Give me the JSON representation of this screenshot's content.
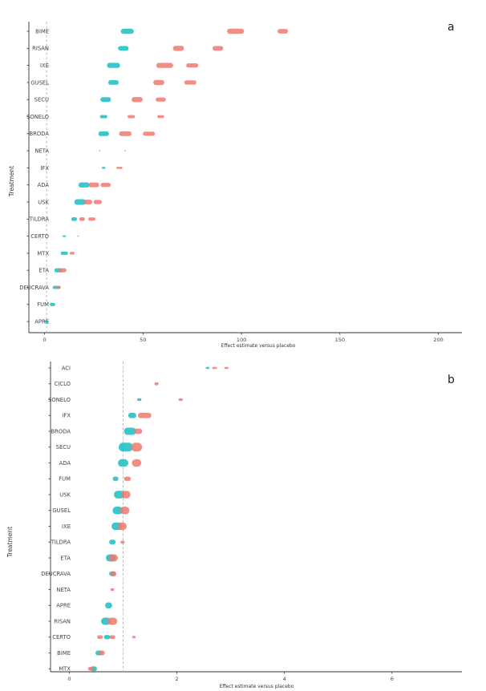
{
  "colors": {
    "teal": "#19bdc2",
    "salmon": "#ef7a6f",
    "axis": "#333333",
    "refline": "#b5b5b5"
  },
  "chart_data": [
    {
      "panel": "a",
      "type": "scatter",
      "ylabel": "Treatment",
      "xlabel": "Effect estimate versus placebo",
      "xlim": [
        -8,
        212
      ],
      "xticks": [
        0,
        50,
        100,
        150,
        200
      ],
      "reference_x": 1,
      "categories": [
        "BIME",
        "RISAN",
        "IXE",
        "GUSEL",
        "SECU",
        "SONELO",
        "BRODA",
        "NETA",
        "IFX",
        "ADA",
        "USK",
        "TILDRA",
        "CERTO",
        "MTX",
        "ETA",
        "DEUCRAVA",
        "FUM",
        "APRE"
      ],
      "series": [
        {
          "color": "teal",
          "points": [
            {
              "c": "BIME",
              "x": 42,
              "w": 4,
              "s": 1.1
            },
            {
              "c": "RISAN",
              "x": 40,
              "w": 3,
              "s": 1.0
            },
            {
              "c": "IXE",
              "x": 35,
              "w": 4,
              "s": 1.1
            },
            {
              "c": "GUSEL",
              "x": 35,
              "w": 3,
              "s": 1.0
            },
            {
              "c": "SECU",
              "x": 31,
              "w": 3,
              "s": 1.0
            },
            {
              "c": "SONELO",
              "x": 30,
              "w": 2,
              "s": 0.7
            },
            {
              "c": "BRODA",
              "x": 30,
              "w": 3,
              "s": 1.0
            },
            {
              "c": "NETA",
              "x": 28,
              "w": 0,
              "s": 0.25
            },
            {
              "c": "IFX",
              "x": 30,
              "w": 1,
              "s": 0.4
            },
            {
              "c": "ADA",
              "x": 20,
              "w": 3,
              "s": 1.1
            },
            {
              "c": "USK",
              "x": 18,
              "w": 3,
              "s": 1.2
            },
            {
              "c": "TILDRA",
              "x": 15,
              "w": 1,
              "s": 0.8
            },
            {
              "c": "CERTO",
              "x": 10,
              "w": 1,
              "s": 0.35
            },
            {
              "c": "MTX",
              "x": 10,
              "w": 2,
              "s": 0.7
            },
            {
              "c": "ETA",
              "x": 7,
              "w": 2,
              "s": 0.9
            },
            {
              "c": "DEUCRAVA",
              "x": 6,
              "w": 2,
              "s": 0.7
            },
            {
              "c": "FUM",
              "x": 4,
              "w": 1,
              "s": 0.7
            },
            {
              "c": "APRE",
              "x": 1,
              "w": 1,
              "s": 0.5
            }
          ]
        },
        {
          "color": "salmon",
          "points": [
            {
              "c": "BIME",
              "x": 97,
              "w": 6,
              "s": 1.1
            },
            {
              "c": "BIME",
              "x": 121,
              "w": 3,
              "s": 1.0
            },
            {
              "c": "RISAN",
              "x": 68,
              "w": 3,
              "s": 1.1
            },
            {
              "c": "RISAN",
              "x": 88,
              "w": 3,
              "s": 1.0
            },
            {
              "c": "IXE",
              "x": 61,
              "w": 6,
              "s": 1.1
            },
            {
              "c": "IXE",
              "x": 75,
              "w": 4,
              "s": 0.9
            },
            {
              "c": "GUSEL",
              "x": 58,
              "w": 3,
              "s": 1.1
            },
            {
              "c": "GUSEL",
              "x": 74,
              "w": 4,
              "s": 0.9
            },
            {
              "c": "SECU",
              "x": 47,
              "w": 3,
              "s": 1.1
            },
            {
              "c": "SECU",
              "x": 59,
              "w": 3,
              "s": 0.9
            },
            {
              "c": "SONELO",
              "x": 44,
              "w": 2,
              "s": 0.7
            },
            {
              "c": "SONELO",
              "x": 59,
              "w": 2,
              "s": 0.6
            },
            {
              "c": "BRODA",
              "x": 41,
              "w": 4,
              "s": 1.0
            },
            {
              "c": "BRODA",
              "x": 53,
              "w": 4,
              "s": 0.9
            },
            {
              "c": "NETA",
              "x": 41,
              "w": 0,
              "s": 0.3
            },
            {
              "c": "IFX",
              "x": 38,
              "w": 2,
              "s": 0.45
            },
            {
              "c": "ADA",
              "x": 25,
              "w": 3,
              "s": 1.0
            },
            {
              "c": "ADA",
              "x": 31,
              "w": 3,
              "s": 0.9
            },
            {
              "c": "USK",
              "x": 22,
              "w": 2,
              "s": 1.0
            },
            {
              "c": "USK",
              "x": 27,
              "w": 2,
              "s": 0.9
            },
            {
              "c": "TILDRA",
              "x": 19,
              "w": 1,
              "s": 0.8
            },
            {
              "c": "TILDRA",
              "x": 24,
              "w": 2,
              "s": 0.7
            },
            {
              "c": "CERTO",
              "x": 17,
              "w": 0,
              "s": 0.3
            },
            {
              "c": "MTX",
              "x": 14,
              "w": 1,
              "s": 0.6
            },
            {
              "c": "ETA",
              "x": 9,
              "w": 2,
              "s": 0.9
            },
            {
              "c": "DEUCRAVA",
              "x": 7,
              "w": 1,
              "s": 0.6
            }
          ]
        }
      ]
    },
    {
      "panel": "b",
      "type": "scatter",
      "ylabel": "Treatment",
      "xlabel": "Effect estimate versus placebo",
      "xlim": [
        -0.35,
        7.3
      ],
      "xticks": [
        0,
        2,
        4,
        6
      ],
      "reference_x": 1,
      "categories": [
        "ACI",
        "CICLO",
        "SONELO",
        "IFX",
        "BRODA",
        "SECU",
        "ADA",
        "FUM",
        "USK",
        "GUSEL",
        "IXE",
        "TILDRA",
        "ETA",
        "DEUCRAVA",
        "NETA",
        "APRE",
        "RISAN",
        "CERTO",
        "BIME",
        "MTX"
      ],
      "series": [
        {
          "color": "teal",
          "points": [
            {
              "c": "ACI",
              "x": 2.57,
              "w": 0.03,
              "s": 0.35
            },
            {
              "c": "SONELO",
              "x": 1.3,
              "w": 0.03,
              "s": 0.45
            },
            {
              "c": "IFX",
              "x": 1.17,
              "w": 0.05,
              "s": 0.9
            },
            {
              "c": "BRODA",
              "x": 1.13,
              "w": 0.1,
              "s": 1.2
            },
            {
              "c": "SECU",
              "x": 1.05,
              "w": 0.1,
              "s": 1.5
            },
            {
              "c": "ADA",
              "x": 1.0,
              "w": 0.05,
              "s": 1.3
            },
            {
              "c": "FUM",
              "x": 0.86,
              "w": 0.03,
              "s": 0.7
            },
            {
              "c": "USK",
              "x": 0.93,
              "w": 0.06,
              "s": 1.3
            },
            {
              "c": "GUSEL",
              "x": 0.9,
              "w": 0.05,
              "s": 1.3
            },
            {
              "c": "IXE",
              "x": 0.88,
              "w": 0.05,
              "s": 1.3
            },
            {
              "c": "TILDRA",
              "x": 0.8,
              "w": 0.03,
              "s": 0.8
            },
            {
              "c": "ETA",
              "x": 0.77,
              "w": 0.05,
              "s": 1.2
            },
            {
              "c": "DEUCRAVA",
              "x": 0.8,
              "w": 0.03,
              "s": 0.8
            },
            {
              "c": "APRE",
              "x": 0.73,
              "w": 0.02,
              "s": 1.0
            },
            {
              "c": "RISAN",
              "x": 0.68,
              "w": 0.05,
              "s": 1.2
            },
            {
              "c": "CERTO",
              "x": 0.7,
              "w": 0.04,
              "s": 0.7
            },
            {
              "c": "BIME",
              "x": 0.55,
              "w": 0.04,
              "s": 0.8
            },
            {
              "c": "MTX",
              "x": 0.45,
              "w": 0.04,
              "s": 0.8
            }
          ]
        },
        {
          "color": "salmon",
          "points": [
            {
              "c": "ACI",
              "x": 2.7,
              "w": 0.05,
              "s": 0.35
            },
            {
              "c": "ACI",
              "x": 2.92,
              "w": 0.04,
              "s": 0.35
            },
            {
              "c": "CICLO",
              "x": 1.62,
              "w": 0.02,
              "s": 0.5
            },
            {
              "c": "SONELO",
              "x": 2.07,
              "w": 0.03,
              "s": 0.45
            },
            {
              "c": "IFX",
              "x": 1.4,
              "w": 0.15,
              "s": 0.9
            },
            {
              "c": "BRODA",
              "x": 1.28,
              "w": 0.05,
              "s": 0.9
            },
            {
              "c": "SECU",
              "x": 1.25,
              "w": 0.04,
              "s": 1.5
            },
            {
              "c": "ADA",
              "x": 1.25,
              "w": 0.03,
              "s": 1.3
            },
            {
              "c": "FUM",
              "x": 1.08,
              "w": 0.05,
              "s": 0.7
            },
            {
              "c": "USK",
              "x": 1.05,
              "w": 0.03,
              "s": 1.3
            },
            {
              "c": "GUSEL",
              "x": 1.03,
              "w": 0.03,
              "s": 1.3
            },
            {
              "c": "IXE",
              "x": 0.98,
              "w": 0.03,
              "s": 1.3
            },
            {
              "c": "TILDRA",
              "x": 0.99,
              "w": 0.02,
              "s": 0.5
            },
            {
              "c": "ETA",
              "x": 0.82,
              "w": 0.03,
              "s": 1.2
            },
            {
              "c": "DEUCRAVA",
              "x": 0.82,
              "w": 0.02,
              "s": 0.8
            },
            {
              "c": "NETA",
              "x": 0.8,
              "w": 0.02,
              "s": 0.45
            },
            {
              "c": "RISAN",
              "x": 0.8,
              "w": 0.05,
              "s": 1.2
            },
            {
              "c": "CERTO",
              "x": 0.57,
              "w": 0.04,
              "s": 0.6
            },
            {
              "c": "CERTO",
              "x": 0.8,
              "w": 0.04,
              "s": 0.6
            },
            {
              "c": "CERTO",
              "x": 1.2,
              "w": 0.02,
              "s": 0.4
            },
            {
              "c": "BIME",
              "x": 0.6,
              "w": 0.03,
              "s": 0.8
            },
            {
              "c": "MTX",
              "x": 0.4,
              "w": 0.04,
              "s": 0.6
            }
          ]
        }
      ]
    }
  ]
}
